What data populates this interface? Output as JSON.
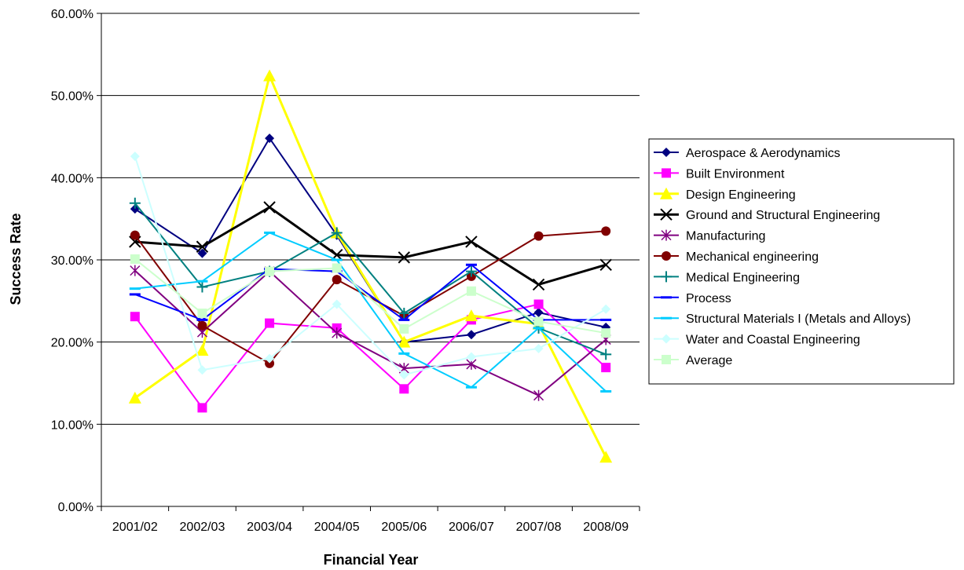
{
  "chart_data": {
    "type": "line",
    "xlabel": "Financial Year",
    "ylabel": "Success Rate",
    "categories": [
      "2001/02",
      "2002/03",
      "2003/04",
      "2004/05",
      "2005/06",
      "2006/07",
      "2007/08",
      "2008/09"
    ],
    "ylim": [
      0,
      0.6
    ],
    "yticks": [
      "0.00%",
      "10.00%",
      "20.00%",
      "30.00%",
      "40.00%",
      "50.00%",
      "60.00%"
    ],
    "grid": "horizontal",
    "legend_position": "right",
    "series": [
      {
        "name": "Aerospace & Aerodynamics",
        "color": "#000080",
        "marker": "diamond",
        "line_width": 2,
        "values": [
          0.362,
          0.308,
          0.448,
          0.33,
          0.2,
          0.209,
          0.236,
          0.218
        ]
      },
      {
        "name": "Built Environment",
        "color": "#FF00FF",
        "marker": "square",
        "line_width": 2,
        "values": [
          0.231,
          0.12,
          0.223,
          0.217,
          0.143,
          0.227,
          0.246,
          0.169
        ]
      },
      {
        "name": "Design Engineering",
        "color": "#FFFF00",
        "marker": "triangle",
        "line_width": 3,
        "values": [
          0.132,
          0.19,
          0.524,
          0.333,
          0.2,
          0.232,
          0.222,
          0.06
        ]
      },
      {
        "name": "Ground and Structural Engineering",
        "color": "#000000",
        "marker": "x",
        "line_width": 3,
        "values": [
          0.322,
          0.316,
          0.364,
          0.306,
          0.303,
          0.322,
          0.27,
          0.294
        ]
      },
      {
        "name": "Manufacturing",
        "color": "#800080",
        "marker": "star",
        "line_width": 2,
        "values": [
          0.287,
          0.212,
          0.286,
          0.211,
          0.168,
          0.173,
          0.135,
          0.203
        ]
      },
      {
        "name": "Mechanical engineering",
        "color": "#800000",
        "marker": "circle",
        "line_width": 2,
        "values": [
          0.33,
          0.22,
          0.174,
          0.276,
          0.232,
          0.28,
          0.329,
          0.335
        ]
      },
      {
        "name": "Medical Engineering",
        "color": "#008080",
        "marker": "plus",
        "line_width": 2,
        "values": [
          0.369,
          0.267,
          0.286,
          0.333,
          0.235,
          0.286,
          0.217,
          0.185
        ]
      },
      {
        "name": "Process",
        "color": "#0000FF",
        "marker": "dash",
        "line_width": 2,
        "values": [
          0.258,
          0.227,
          0.289,
          0.286,
          0.227,
          0.294,
          0.227,
          0.227
        ]
      },
      {
        "name": "Structural Materials I (Metals and Alloys)",
        "color": "#00CCFF",
        "marker": "dash",
        "line_width": 2,
        "values": [
          0.265,
          0.274,
          0.333,
          0.3,
          0.186,
          0.145,
          0.217,
          0.14
        ]
      },
      {
        "name": "Water and Coastal Engineering",
        "color": "#CCFFFF",
        "marker": "diamond",
        "line_width": 2,
        "values": [
          0.426,
          0.166,
          0.18,
          0.246,
          0.16,
          0.182,
          0.192,
          0.24
        ]
      },
      {
        "name": "Average",
        "color": "#CCFFCC",
        "marker": "square",
        "line_width": 2,
        "values": [
          0.301,
          0.235,
          0.286,
          0.29,
          0.216,
          0.262,
          0.225,
          0.211
        ]
      }
    ]
  }
}
